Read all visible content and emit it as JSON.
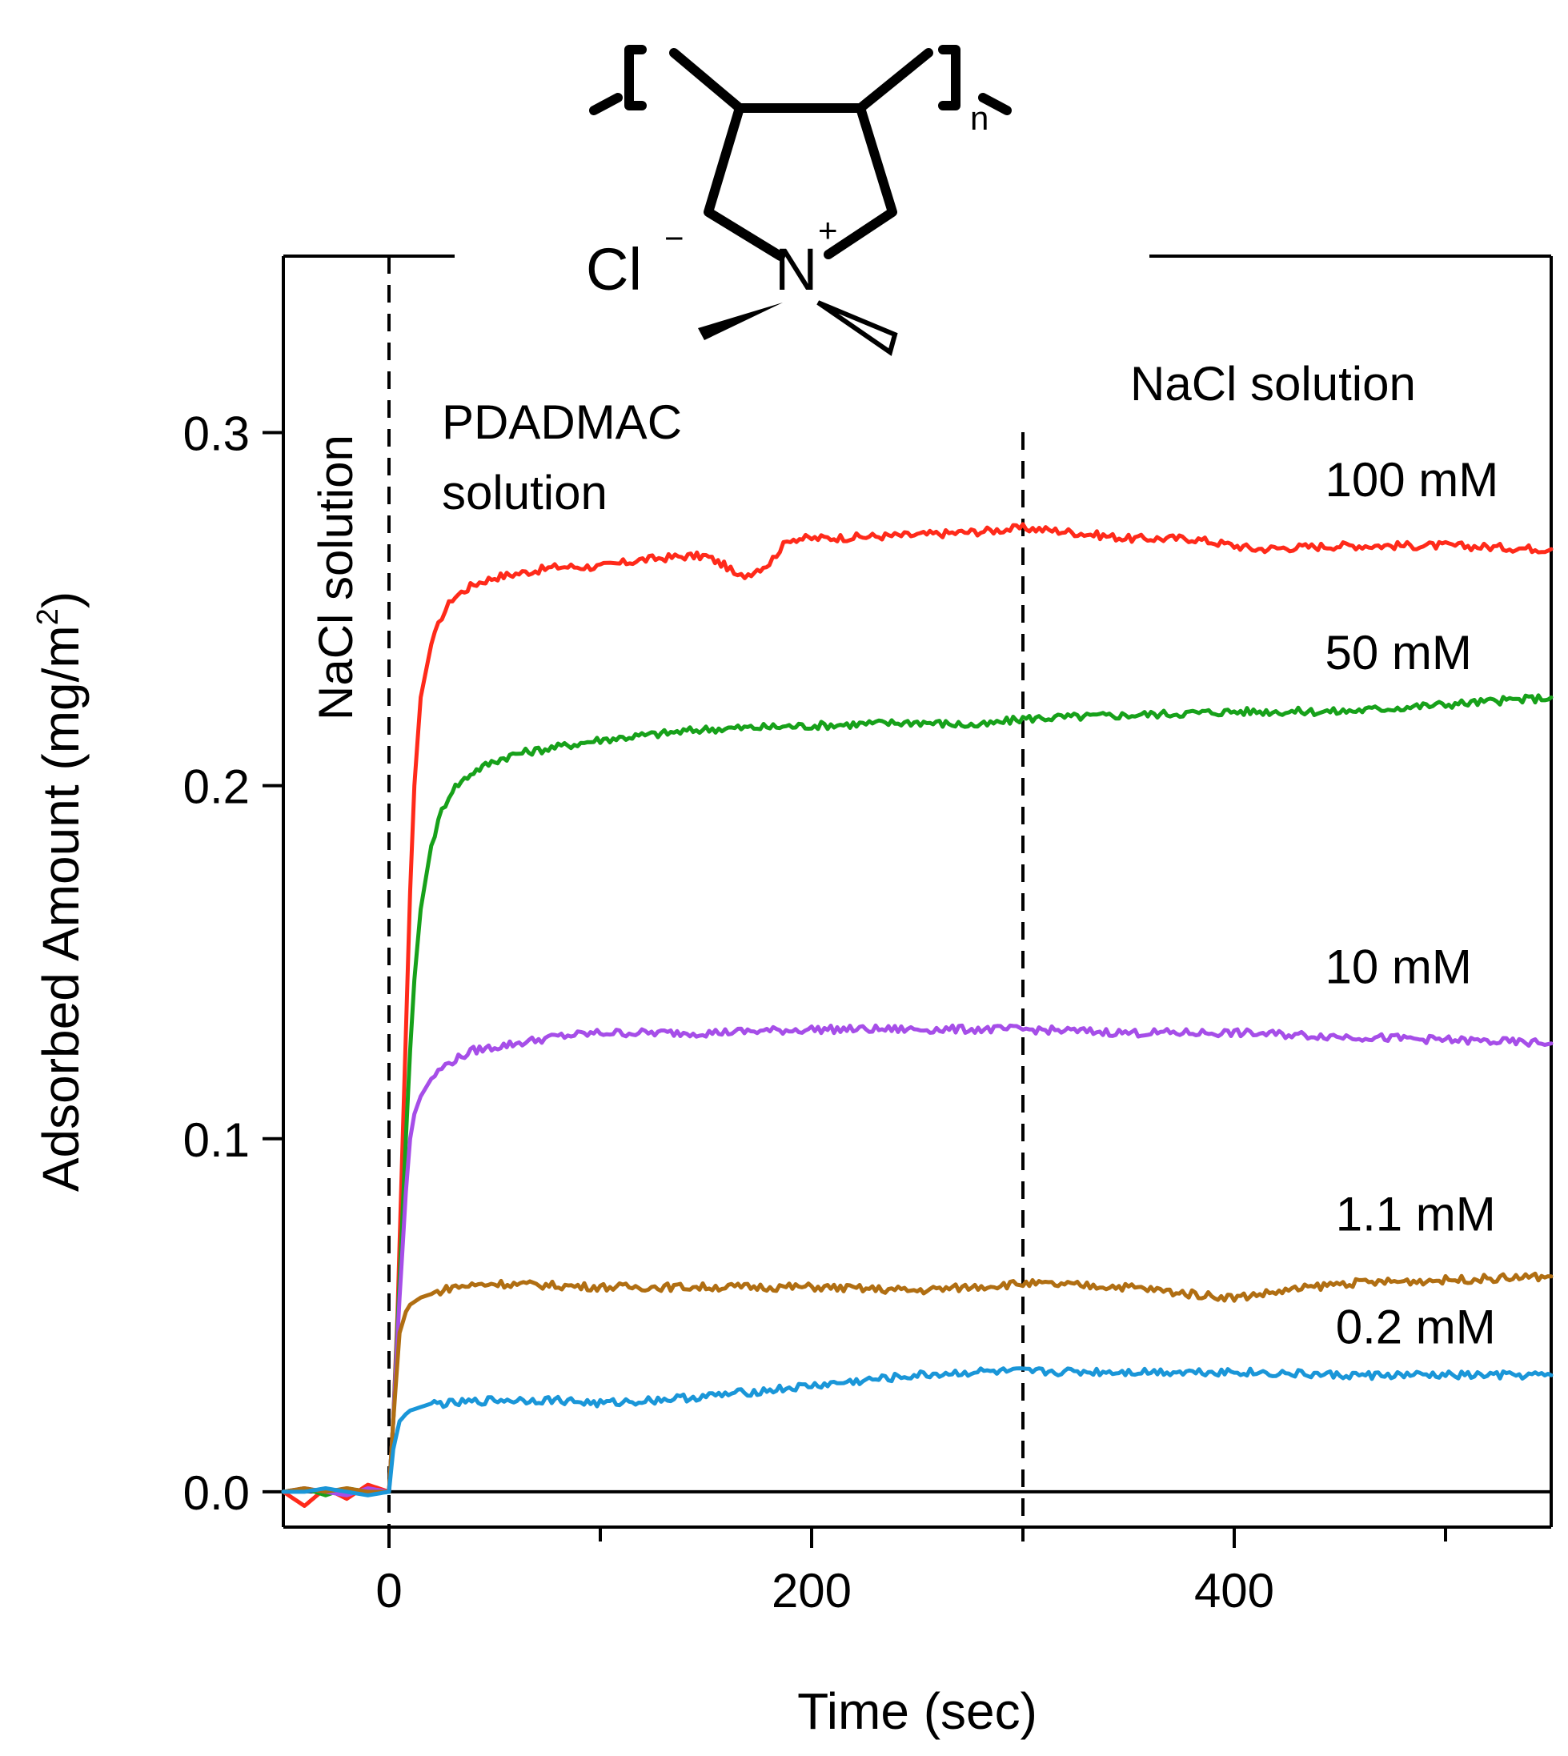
{
  "chart_data": {
    "type": "line",
    "title": "",
    "xlabel": "Time (sec)",
    "ylabel": "Adsorbed Amount (mg/m",
    "ylabel_superscript": "2",
    "ylabel_close": ")",
    "xlim": [
      -50,
      550
    ],
    "ylim": [
      -0.01,
      0.35
    ],
    "x_ticks": [
      0,
      200,
      400
    ],
    "x_tick_labels": [
      "0",
      "200",
      "400"
    ],
    "x_minor_ticks": [
      100,
      300,
      500
    ],
    "y_ticks": [
      0.0,
      0.1,
      0.2,
      0.3
    ],
    "y_tick_labels": [
      "0.0",
      "0.1",
      "0.2",
      "0.3"
    ],
    "grid": false,
    "legend": "none (series labelled directly)",
    "vertical_markers_x": [
      0,
      300
    ],
    "annotations": {
      "stage_left": "NaCl solution",
      "stage_middle_line1": "PDADMAC",
      "stage_middle_line2": "solution",
      "stage_right": "NaCl solution"
    },
    "chemical_structure": {
      "counterion": "Cl",
      "counterion_charge": "−",
      "cation": "N",
      "cation_charge": "+",
      "repeat_subscript": "n"
    },
    "series": [
      {
        "name": "100 mM",
        "color": "#ff2a1a",
        "x": [
          -50,
          -40,
          -30,
          -20,
          -10,
          0,
          2,
          4,
          6,
          8,
          10,
          12,
          15,
          20,
          25,
          30,
          40,
          50,
          60,
          80,
          100,
          120,
          140,
          150,
          160,
          165,
          170,
          180,
          185,
          190,
          200,
          250,
          280,
          300,
          320,
          350,
          380,
          400,
          410,
          450,
          500,
          550
        ],
        "y": [
          0.0,
          -0.004,
          0.001,
          -0.002,
          0.002,
          0.0,
          0.02,
          0.05,
          0.09,
          0.13,
          0.17,
          0.2,
          0.225,
          0.24,
          0.248,
          0.253,
          0.257,
          0.259,
          0.26,
          0.262,
          0.262,
          0.264,
          0.265,
          0.265,
          0.262,
          0.259,
          0.26,
          0.263,
          0.267,
          0.27,
          0.27,
          0.271,
          0.272,
          0.273,
          0.272,
          0.27,
          0.27,
          0.268,
          0.267,
          0.268,
          0.268,
          0.267
        ]
      },
      {
        "name": "50 mM",
        "color": "#17a11a",
        "x": [
          -50,
          -40,
          -30,
          -20,
          -10,
          0,
          2,
          5,
          8,
          10,
          12,
          15,
          20,
          25,
          30,
          40,
          50,
          60,
          80,
          100,
          150,
          200,
          250,
          280,
          300,
          350,
          400,
          450,
          500,
          550
        ],
        "y": [
          0.0,
          0.001,
          -0.001,
          0.001,
          0.0,
          0.0,
          0.02,
          0.06,
          0.1,
          0.125,
          0.145,
          0.165,
          0.183,
          0.193,
          0.199,
          0.204,
          0.207,
          0.209,
          0.211,
          0.213,
          0.216,
          0.217,
          0.218,
          0.217,
          0.219,
          0.22,
          0.221,
          0.221,
          0.223,
          0.225
        ]
      },
      {
        "name": "10 mM",
        "color": "#a64ee8",
        "x": [
          -50,
          -40,
          -30,
          -20,
          -10,
          0,
          2,
          5,
          8,
          10,
          12,
          15,
          20,
          25,
          30,
          40,
          50,
          60,
          80,
          100,
          150,
          200,
          250,
          300,
          350,
          400,
          450,
          500,
          550
        ],
        "y": [
          0.0,
          0.001,
          0.0,
          -0.001,
          0.001,
          0.0,
          0.02,
          0.055,
          0.085,
          0.1,
          0.107,
          0.112,
          0.117,
          0.12,
          0.122,
          0.125,
          0.126,
          0.127,
          0.129,
          0.13,
          0.13,
          0.131,
          0.131,
          0.131,
          0.13,
          0.13,
          0.129,
          0.128,
          0.127
        ]
      },
      {
        "name": "1.1 mM",
        "color": "#b06e12",
        "x": [
          -50,
          -40,
          -30,
          -20,
          -10,
          0,
          2,
          5,
          8,
          10,
          15,
          20,
          30,
          50,
          100,
          150,
          200,
          250,
          300,
          350,
          380,
          400,
          450,
          500,
          550
        ],
        "y": [
          0.0,
          0.001,
          0.0,
          0.001,
          0.0,
          0.0,
          0.02,
          0.045,
          0.051,
          0.053,
          0.055,
          0.056,
          0.058,
          0.059,
          0.058,
          0.058,
          0.058,
          0.057,
          0.059,
          0.058,
          0.056,
          0.055,
          0.059,
          0.06,
          0.061
        ]
      },
      {
        "name": "0.2 mM",
        "color": "#1a96d8",
        "x": [
          -50,
          -40,
          -30,
          -20,
          -10,
          0,
          2,
          5,
          8,
          10,
          15,
          20,
          30,
          50,
          80,
          100,
          150,
          200,
          250,
          280,
          300,
          350,
          400,
          450,
          500,
          550
        ],
        "y": [
          0.0,
          0.0,
          0.001,
          0.0,
          -0.001,
          0.0,
          0.012,
          0.02,
          0.022,
          0.023,
          0.024,
          0.025,
          0.025,
          0.026,
          0.026,
          0.025,
          0.027,
          0.03,
          0.033,
          0.034,
          0.034,
          0.034,
          0.034,
          0.033,
          0.033,
          0.033
        ]
      }
    ],
    "series_label_values": [
      {
        "name": "100 mM",
        "x": 443,
        "y": 0.282
      },
      {
        "name": "50 mM",
        "x": 443,
        "y": 0.233
      },
      {
        "name": "10 mM",
        "x": 443,
        "y": 0.144
      },
      {
        "name": "1.1 mM",
        "x": 448,
        "y": 0.074
      },
      {
        "name": "0.2 mM",
        "x": 448,
        "y": 0.042
      }
    ]
  }
}
